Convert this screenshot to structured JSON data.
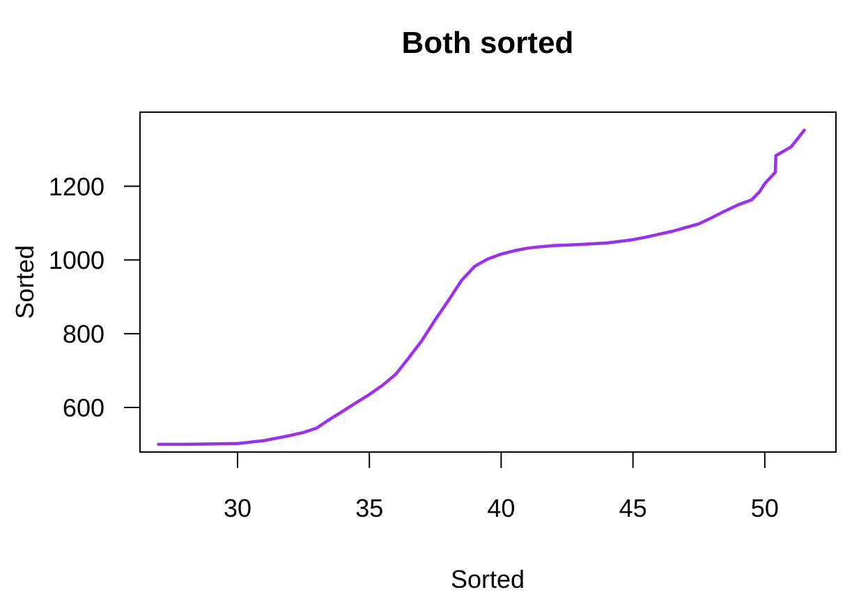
{
  "chart_data": {
    "type": "line",
    "title": "Both sorted",
    "xlabel": "Sorted",
    "ylabel": "Sorted",
    "xlim": [
      26.3,
      52.7
    ],
    "ylim": [
      479,
      1401
    ],
    "xticks": [
      30,
      35,
      40,
      45,
      50
    ],
    "yticks": [
      600,
      800,
      1000,
      1200
    ],
    "grid": false,
    "legend": "none",
    "colors": {
      "line": "#9B30F0",
      "axis": "#000000"
    },
    "series": [
      {
        "x": [
          27.0,
          28.0,
          29.0,
          30.0,
          30.5,
          31.0,
          31.5,
          32.0,
          32.5,
          33.0,
          33.5,
          34.0,
          34.5,
          35.0,
          35.5,
          36.0,
          36.5,
          37.0,
          37.5,
          38.0,
          38.5,
          39.0,
          39.5,
          40.0,
          40.5,
          41.0,
          41.5,
          42.0,
          43.0,
          44.0,
          45.0,
          45.5,
          46.0,
          46.5,
          47.0,
          47.5,
          48.0,
          48.5,
          49.0,
          49.5,
          49.8,
          50.0,
          50.4,
          50.42,
          51.0,
          51.5
        ],
        "y": [
          500,
          500,
          501,
          502,
          506,
          510,
          517,
          524,
          532,
          544,
          568,
          590,
          613,
          635,
          660,
          690,
          735,
          782,
          838,
          890,
          945,
          983,
          1003,
          1016,
          1025,
          1032,
          1036,
          1039,
          1042,
          1046,
          1055,
          1062,
          1070,
          1078,
          1088,
          1098,
          1115,
          1133,
          1150,
          1163,
          1185,
          1207,
          1238,
          1283,
          1307,
          1352
        ]
      }
    ]
  }
}
